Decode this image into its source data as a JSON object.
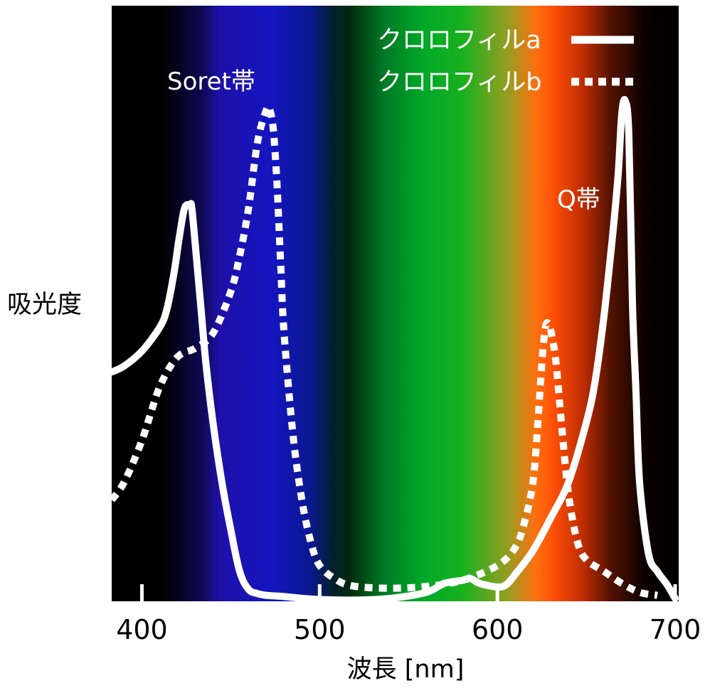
{
  "chart_data": {
    "type": "line",
    "title": "",
    "xlabel": "波長 [nm]",
    "ylabel": "吸光度",
    "xlim": [
      383,
      702
    ],
    "ylim": [
      0,
      1.0
    ],
    "xticks": [
      400,
      500,
      600,
      700
    ],
    "grid": false,
    "legend_position": "top-right",
    "annotations": [
      {
        "text": "Soret帯",
        "near_x": 450
      },
      {
        "text": "Q帯",
        "near_x": 659
      }
    ],
    "background": "visible light spectrum gradient (violet to deep red)",
    "series": [
      {
        "name": "クロロフィルa",
        "style": "solid",
        "color": "#ffffff",
        "x": [
          383,
          390,
          400,
          410,
          414,
          418,
          421,
          424,
          427,
          428,
          430,
          433,
          436,
          440,
          445,
          450,
          455,
          460,
          465,
          470,
          480,
          490,
          500,
          520,
          540,
          560,
          570,
          580,
          585,
          590,
          600,
          605,
          610,
          620,
          630,
          640,
          650,
          655,
          660,
          665,
          668,
          670,
          672,
          674,
          676,
          678,
          680,
          685,
          690,
          695,
          700
        ],
        "y": [
          0.385,
          0.395,
          0.42,
          0.46,
          0.49,
          0.55,
          0.61,
          0.66,
          0.665,
          0.662,
          0.6,
          0.5,
          0.4,
          0.3,
          0.2,
          0.12,
          0.05,
          0.02,
          0.013,
          0.01,
          0.008,
          0.005,
          0.003,
          0.002,
          0.005,
          0.015,
          0.03,
          0.035,
          0.038,
          0.03,
          0.024,
          0.028,
          0.045,
          0.085,
          0.14,
          0.2,
          0.3,
          0.37,
          0.48,
          0.62,
          0.72,
          0.82,
          0.84,
          0.78,
          0.5,
          0.35,
          0.2,
          0.08,
          0.05,
          0.03,
          0.005
        ]
      },
      {
        "name": "クロロフィルb",
        "style": "dotted",
        "color": "#ffffff",
        "x": [
          383,
          390,
          400,
          410,
          420,
          430,
          440,
          450,
          455,
          460,
          465,
          470,
          472,
          474,
          476,
          478,
          480,
          485,
          490,
          495,
          500,
          510,
          520,
          540,
          560,
          580,
          600,
          610,
          615,
          620,
          623,
          625,
          627,
          629,
          631,
          633,
          636,
          640,
          645,
          650,
          660,
          670,
          680,
          690
        ],
        "y": [
          0.17,
          0.2,
          0.27,
          0.36,
          0.41,
          0.425,
          0.45,
          0.52,
          0.58,
          0.66,
          0.77,
          0.825,
          0.825,
          0.79,
          0.7,
          0.57,
          0.45,
          0.28,
          0.17,
          0.1,
          0.06,
          0.035,
          0.025,
          0.022,
          0.025,
          0.035,
          0.06,
          0.09,
          0.13,
          0.2,
          0.31,
          0.4,
          0.46,
          0.465,
          0.44,
          0.4,
          0.3,
          0.18,
          0.1,
          0.07,
          0.05,
          0.03,
          0.015,
          0.01
        ]
      }
    ]
  }
}
